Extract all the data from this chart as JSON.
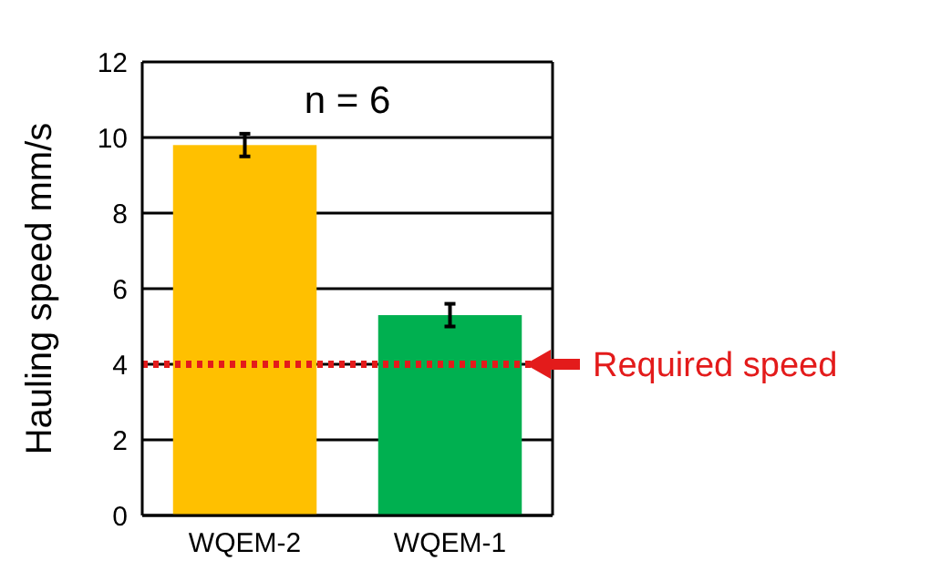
{
  "chart_data": {
    "type": "bar",
    "ylabel": "Hauling speed  mm/s",
    "categories": [
      "WQEM-2",
      "WQEM-1"
    ],
    "values": [
      9.8,
      5.3
    ],
    "colors": [
      "#ffc000",
      "#00b050"
    ],
    "errors": [
      0.3,
      0.3
    ],
    "ylim": [
      0,
      12
    ],
    "yticks": [
      0,
      2,
      4,
      6,
      8,
      10,
      12
    ],
    "grid": "y",
    "ref_lines": [
      {
        "axis": "y",
        "value": 4,
        "label": "Required speed",
        "color": "#e31b1b",
        "line_style": "dotted"
      }
    ],
    "annotations": [
      "n = 6"
    ]
  }
}
